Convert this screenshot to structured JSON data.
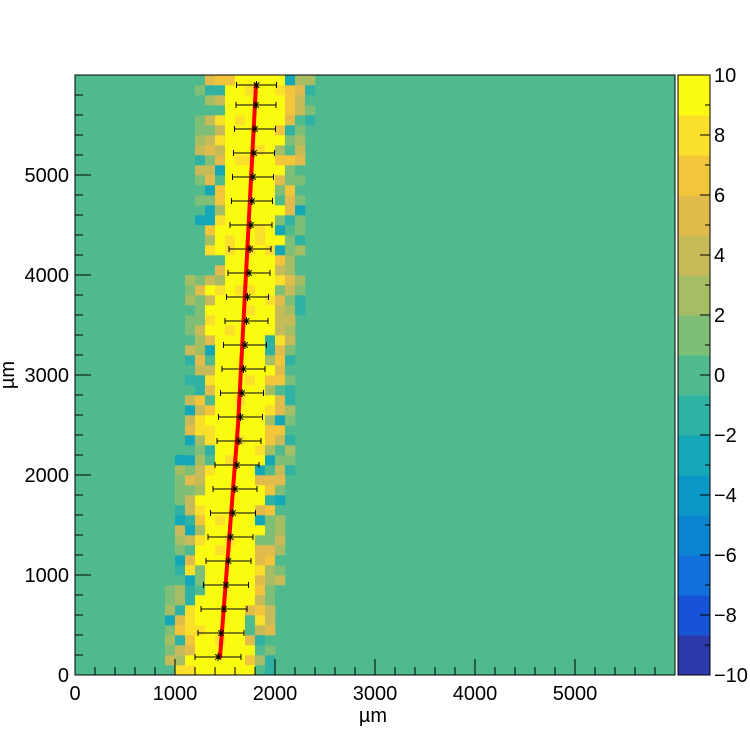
{
  "chart_data": {
    "type": "heatmap",
    "title": "",
    "xlabel": "µm",
    "ylabel": "µm",
    "xlim": [
      0,
      6000
    ],
    "ylim": [
      0,
      6000
    ],
    "x_ticks": [
      {
        "value": 0,
        "label": "0"
      },
      {
        "value": 1000,
        "label": "1000"
      },
      {
        "value": 2000,
        "label": "2000"
      },
      {
        "value": 3000,
        "label": "3000"
      },
      {
        "value": 4000,
        "label": "4000"
      },
      {
        "value": 5000,
        "label": "5000"
      }
    ],
    "y_ticks": [
      {
        "value": 0,
        "label": "0"
      },
      {
        "value": 1000,
        "label": "1000"
      },
      {
        "value": 2000,
        "label": "2000"
      },
      {
        "value": 3000,
        "label": "3000"
      },
      {
        "value": 4000,
        "label": "4000"
      },
      {
        "value": 5000,
        "label": "5000"
      }
    ],
    "colorbar": {
      "min": -10,
      "max": 10,
      "ticks": [
        {
          "value": 10,
          "label": "10"
        },
        {
          "value": 8,
          "label": "8"
        },
        {
          "value": 6,
          "label": "6"
        },
        {
          "value": 4,
          "label": "4"
        },
        {
          "value": 2,
          "label": "2"
        },
        {
          "value": 0,
          "label": "0"
        },
        {
          "value": -2,
          "label": "−2"
        },
        {
          "value": -4,
          "label": "−4"
        },
        {
          "value": -6,
          "label": "−6"
        },
        {
          "value": -8,
          "label": "−8"
        },
        {
          "value": -10,
          "label": "−10"
        }
      ],
      "colors": [
        "#2b3aa8",
        "#1653d6",
        "#1171dc",
        "#0a86d0",
        "#0c98c6",
        "#14a7b8",
        "#2fb1a4",
        "#50ba8f",
        "#7fbe76",
        "#a6be63",
        "#c6bb58",
        "#e2bb4d",
        "#f3c53a",
        "#fae02b",
        "#fbfb12"
      ]
    },
    "background_value": 0,
    "track_points": [
      {
        "x": 1430,
        "y": 180,
        "xerr": 230
      },
      {
        "x": 1460,
        "y": 420,
        "xerr": 230
      },
      {
        "x": 1490,
        "y": 660,
        "xerr": 230
      },
      {
        "x": 1510,
        "y": 900,
        "xerr": 225
      },
      {
        "x": 1535,
        "y": 1140,
        "xerr": 225
      },
      {
        "x": 1555,
        "y": 1380,
        "xerr": 225
      },
      {
        "x": 1580,
        "y": 1620,
        "xerr": 225
      },
      {
        "x": 1600,
        "y": 1860,
        "xerr": 220
      },
      {
        "x": 1620,
        "y": 2100,
        "xerr": 220
      },
      {
        "x": 1640,
        "y": 2340,
        "xerr": 220
      },
      {
        "x": 1655,
        "y": 2580,
        "xerr": 220
      },
      {
        "x": 1670,
        "y": 2820,
        "xerr": 215
      },
      {
        "x": 1685,
        "y": 3060,
        "xerr": 215
      },
      {
        "x": 1700,
        "y": 3300,
        "xerr": 215
      },
      {
        "x": 1715,
        "y": 3540,
        "xerr": 215
      },
      {
        "x": 1725,
        "y": 3780,
        "xerr": 210
      },
      {
        "x": 1740,
        "y": 4020,
        "xerr": 210
      },
      {
        "x": 1750,
        "y": 4260,
        "xerr": 210
      },
      {
        "x": 1760,
        "y": 4500,
        "xerr": 210
      },
      {
        "x": 1770,
        "y": 4740,
        "xerr": 205
      },
      {
        "x": 1780,
        "y": 4980,
        "xerr": 205
      },
      {
        "x": 1790,
        "y": 5220,
        "xerr": 205
      },
      {
        "x": 1800,
        "y": 5460,
        "xerr": 205
      },
      {
        "x": 1810,
        "y": 5700,
        "xerr": 200
      },
      {
        "x": 1815,
        "y": 5900,
        "xerr": 200
      }
    ],
    "fit_line": {
      "color": "#ff0000",
      "points": [
        {
          "x": 1450,
          "y": 180
        },
        {
          "x": 1630,
          "y": 2500
        },
        {
          "x": 1810,
          "y": 5900
        }
      ]
    },
    "track_band": {
      "core_halfwidth": 250,
      "halo_halfwidth": 560
    },
    "grid": false
  }
}
